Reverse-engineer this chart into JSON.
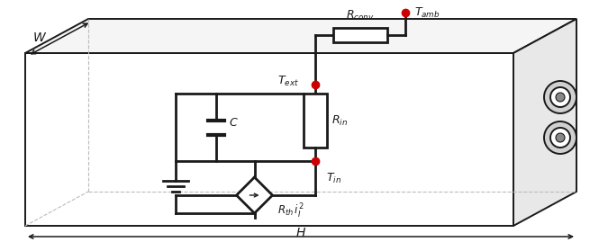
{
  "fig_width": 6.65,
  "fig_height": 2.69,
  "dpi": 100,
  "bg_color": "#ffffff",
  "cc": "#1a1a1a",
  "nc": "#cc0000",
  "labels": {
    "W": "$W$",
    "H": "$H$",
    "T_amb": "$T_{amb}$",
    "T_ext": "$T_{ext}$",
    "T_in": "$T_{in}$",
    "R_conv": "$R_{conv}$",
    "R_in": "$R_{in}$",
    "C": "$C$",
    "R_th": "$R_{th}\\, i_I^2$"
  },
  "fs": 9,
  "lw": 1.4
}
